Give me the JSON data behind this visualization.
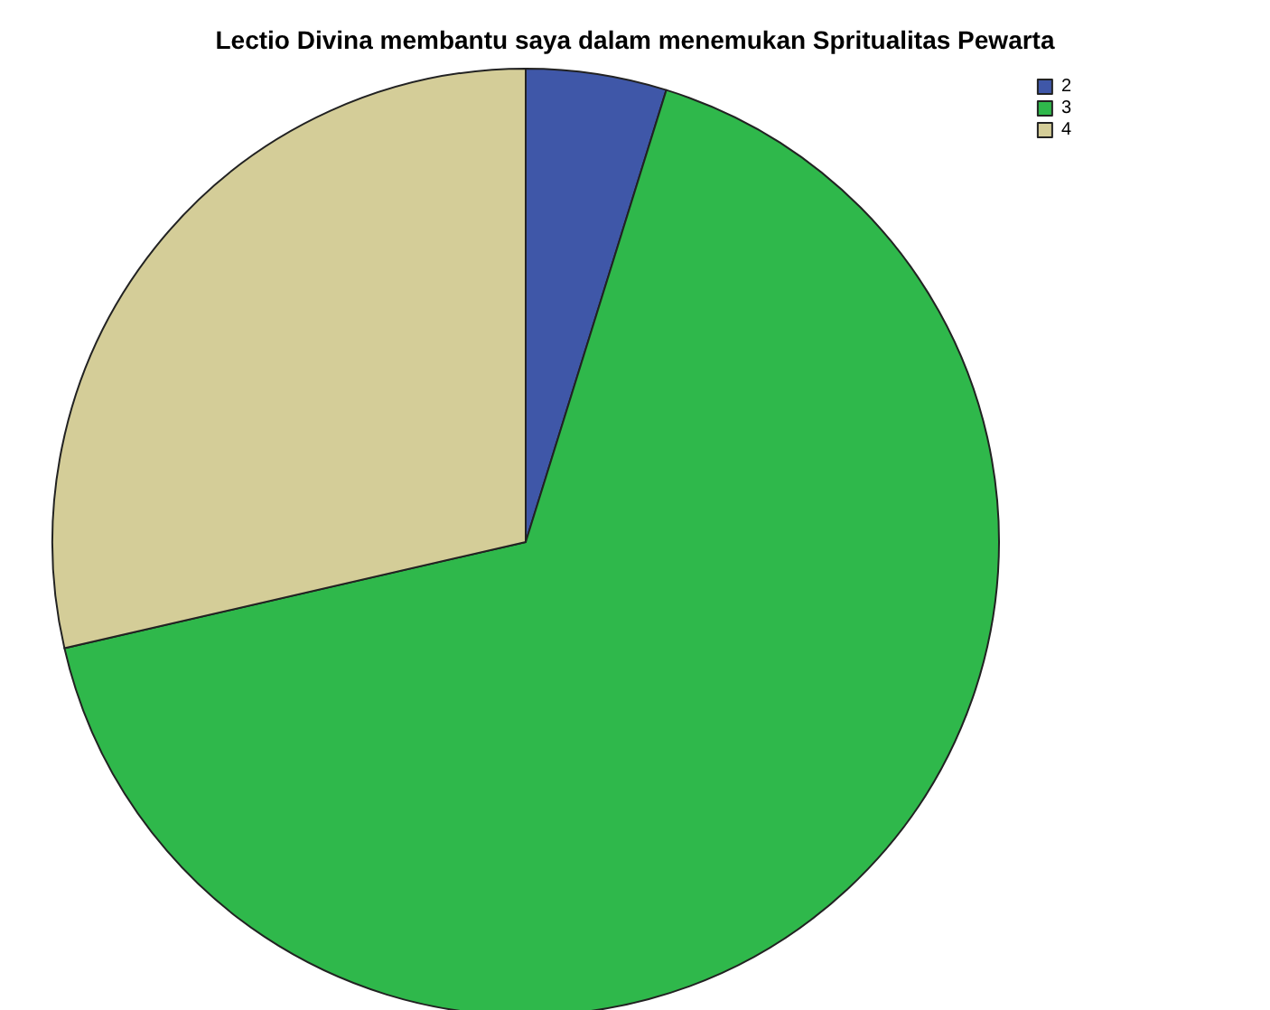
{
  "chart_data": {
    "type": "pie",
    "title": "Lectio Divina membantu saya dalam menemukan Spritualitas Pewarta",
    "categories": [
      "2",
      "3",
      "4"
    ],
    "values": [
      4.8,
      66.6,
      28.6
    ],
    "colors": [
      "#3f57a8",
      "#2fb84b",
      "#d4cd98"
    ],
    "legend": "top right"
  }
}
